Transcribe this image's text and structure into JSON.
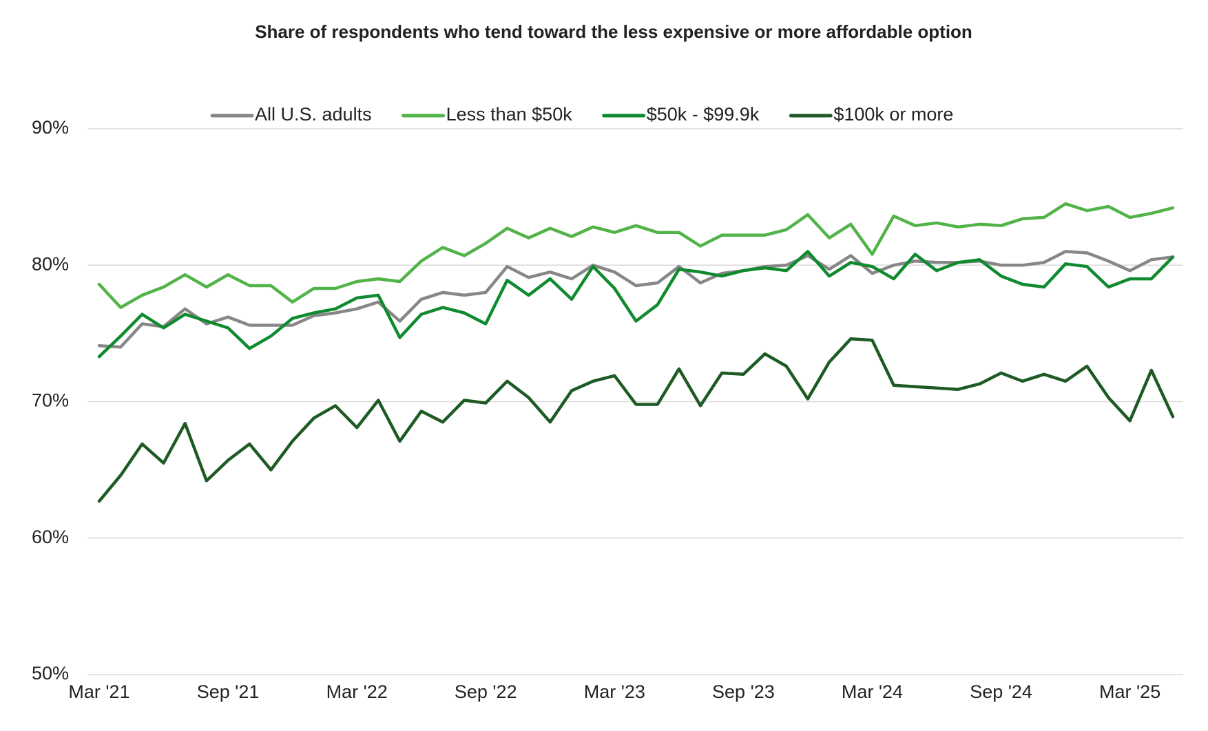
{
  "chart_data": {
    "type": "line",
    "title": "Share of respondents who tend toward the less expensive or more affordable option",
    "categories": [
      "Mar '21",
      null,
      null,
      null,
      null,
      null,
      "Sep '21",
      null,
      null,
      null,
      null,
      null,
      "Mar '22",
      null,
      null,
      null,
      null,
      null,
      "Sep '22",
      null,
      null,
      null,
      null,
      null,
      "Mar '23",
      null,
      null,
      null,
      null,
      null,
      "Sep '23",
      null,
      null,
      null,
      null,
      null,
      "Mar '24",
      null,
      null,
      null,
      null,
      null,
      "Sep '24",
      null,
      null,
      null,
      null,
      null,
      "Mar '25",
      null,
      null
    ],
    "series": [
      {
        "name": "All U.S. adults",
        "color": "#878787",
        "values": [
          74.1,
          74.0,
          75.7,
          75.5,
          76.8,
          75.7,
          76.2,
          75.6,
          75.6,
          75.6,
          76.3,
          76.5,
          76.8,
          77.3,
          75.9,
          77.5,
          78.0,
          77.8,
          78.0,
          79.9,
          79.1,
          79.5,
          79.0,
          80.0,
          79.5,
          78.5,
          78.7,
          79.9,
          78.7,
          79.4,
          79.6,
          79.9,
          80.0,
          80.7,
          79.7,
          80.7,
          79.4,
          80.0,
          80.3,
          80.2,
          80.2,
          80.3,
          80.0,
          80.0,
          80.2,
          81.0,
          80.9,
          80.3,
          79.6,
          80.4,
          80.6
        ]
      },
      {
        "name": "Less than $50k",
        "color": "#52b348",
        "values": [
          78.6,
          76.9,
          77.8,
          78.4,
          79.3,
          78.4,
          79.3,
          78.5,
          78.5,
          77.3,
          78.3,
          78.3,
          78.8,
          79.0,
          78.8,
          80.3,
          81.3,
          80.7,
          81.6,
          82.7,
          82.0,
          82.7,
          82.1,
          82.8,
          82.4,
          82.9,
          82.4,
          82.4,
          81.4,
          82.2,
          82.2,
          82.2,
          82.6,
          83.7,
          82.0,
          83.0,
          80.8,
          83.6,
          82.9,
          83.1,
          82.8,
          83.0,
          82.9,
          83.4,
          83.5,
          84.5,
          84.0,
          84.3,
          83.5,
          83.8,
          84.2
        ]
      },
      {
        "name": "$50k - $99.9k",
        "color": "#0f8a2e",
        "values": [
          73.3,
          74.8,
          76.4,
          75.4,
          76.4,
          75.9,
          75.4,
          73.9,
          74.8,
          76.1,
          76.5,
          76.8,
          77.6,
          77.8,
          74.7,
          76.4,
          76.9,
          76.5,
          75.7,
          78.9,
          77.8,
          79.0,
          77.5,
          79.9,
          78.3,
          75.9,
          77.1,
          79.7,
          79.5,
          79.2,
          79.6,
          79.8,
          79.6,
          81.0,
          79.2,
          80.2,
          79.9,
          79.0,
          80.8,
          79.6,
          80.2,
          80.4,
          79.2,
          78.6,
          78.4,
          80.1,
          79.9,
          78.4,
          79.0,
          79.0,
          80.6
        ]
      },
      {
        "name": "$100k or more",
        "color": "#1e5a24",
        "values": [
          62.7,
          64.6,
          66.9,
          65.5,
          68.4,
          64.2,
          65.7,
          66.9,
          65.0,
          67.1,
          68.8,
          69.7,
          68.1,
          70.1,
          67.1,
          69.3,
          68.5,
          70.1,
          69.9,
          71.5,
          70.3,
          68.5,
          70.8,
          71.5,
          71.9,
          69.8,
          69.8,
          72.4,
          69.7,
          72.1,
          72.0,
          73.5,
          72.6,
          70.2,
          72.9,
          74.6,
          74.5,
          71.2,
          71.1,
          71.0,
          70.9,
          71.3,
          72.1,
          71.5,
          72.0,
          71.5,
          72.6,
          70.3,
          68.6,
          72.3,
          68.9
        ]
      }
    ],
    "ylim": [
      50,
      90
    ],
    "yticks": [
      {
        "value": 50,
        "label": "50%"
      },
      {
        "value": 60,
        "label": "60%"
      },
      {
        "value": 70,
        "label": "70%"
      },
      {
        "value": 80,
        "label": "80%"
      },
      {
        "value": 90,
        "label": "90%"
      }
    ],
    "grid": true,
    "legend": "top"
  }
}
